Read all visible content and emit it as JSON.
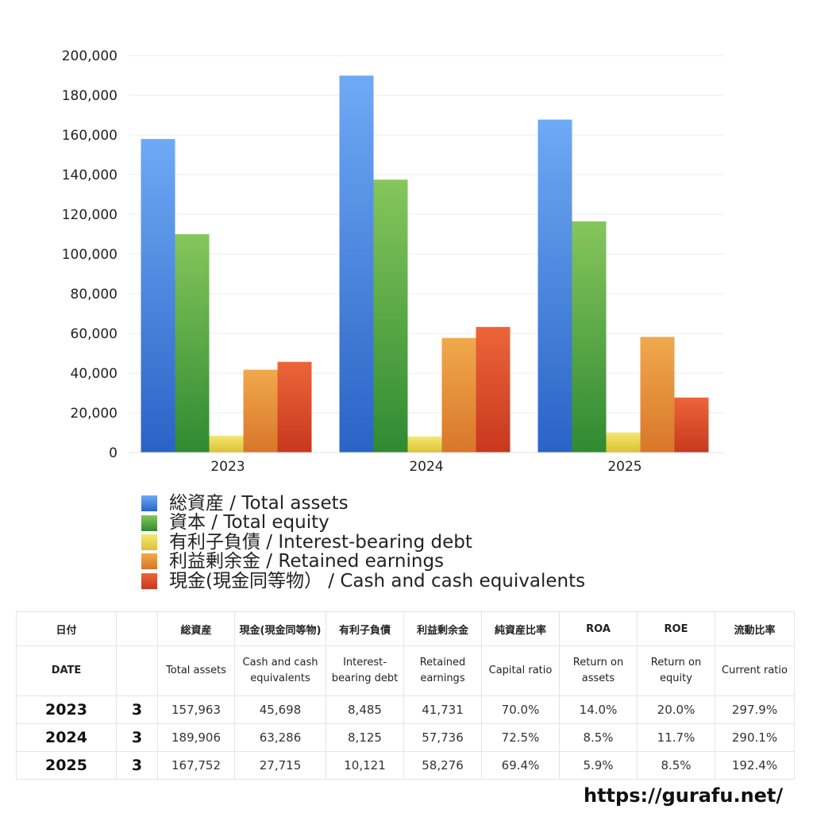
{
  "chart_data": {
    "type": "bar",
    "categories": [
      "2023",
      "2024",
      "2025"
    ],
    "series": [
      {
        "name": "総資産 / Total assets",
        "color": "#3f82e0",
        "values": [
          157963,
          189906,
          167752
        ]
      },
      {
        "name": "資本 / Total equity",
        "color": "#52a844",
        "values": [
          110000,
          137500,
          116500
        ]
      },
      {
        "name": "有利子負債 / Interest-bearing debt",
        "color": "#ead84c",
        "values": [
          8485,
          8125,
          10121
        ]
      },
      {
        "name": "利益剰余金 / Retained earnings",
        "color": "#e8902f",
        "values": [
          41731,
          57736,
          58276
        ]
      },
      {
        "name": "現金(現金同等物） /  Cash and cash equivalents",
        "color": "#dd4a26",
        "values": [
          45698,
          63286,
          27715
        ]
      }
    ],
    "ylim": [
      0,
      200000
    ],
    "yticks": [
      "0",
      "20,000",
      "40,000",
      "60,000",
      "80,000",
      "100,000",
      "120,000",
      "140,000",
      "160,000",
      "180,000",
      "200,000"
    ],
    "grid": true,
    "legend_position": "bottom"
  },
  "table": {
    "header_jp": [
      "日付",
      "",
      "総資産",
      "現金(現金同等物)",
      "有利子負債",
      "利益剰余金",
      "純資産比率",
      "ROA",
      "ROE",
      "流動比率"
    ],
    "header_en": [
      "DATE",
      "",
      "Total assets",
      "Cash and cash equivalents",
      "Interest-bearing debt",
      "Retained earnings",
      "Capital ratio",
      "Return on assets",
      "Return on equity",
      "Current ratio"
    ],
    "rows": [
      [
        "2023",
        "3",
        "157,963",
        "45,698",
        "8,485",
        "41,731",
        "70.0%",
        "14.0%",
        "20.0%",
        "297.9%"
      ],
      [
        "2024",
        "3",
        "189,906",
        "63,286",
        "8,125",
        "57,736",
        "72.5%",
        "8.5%",
        "11.7%",
        "290.1%"
      ],
      [
        "2025",
        "3",
        "167,752",
        "27,715",
        "10,121",
        "58,276",
        "69.4%",
        "5.9%",
        "8.5%",
        "192.4%"
      ]
    ]
  },
  "footer": {
    "source_url": "https://gurafu.net/"
  }
}
